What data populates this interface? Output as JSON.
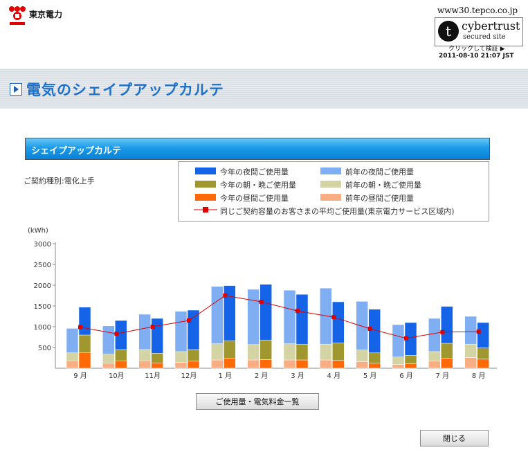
{
  "header": {
    "logo_text": "東京電力",
    "site_url": "www30.tepco.co.jp",
    "cybertrust_name": "cybertrust",
    "cybertrust_sub": "secured site",
    "cybertrust_verify": "クリックして検証 ▶",
    "timestamp": "2011-08-10 21:07 JST"
  },
  "page": {
    "title": "電気のシェイプアップカルテ",
    "section_title": "シェイプアップカルテ",
    "contract_label": "ご契約種別:電化上手"
  },
  "legend": {
    "items": [
      {
        "label": "今年の夜間ご使用量",
        "color": "#1564e8"
      },
      {
        "label": "前年の夜間ご使用量",
        "color": "#80aef2"
      },
      {
        "label": "今年の朝・晩ご使用量",
        "color": "#a0972e"
      },
      {
        "label": "前年の朝・晩ご使用量",
        "color": "#d3d3a4"
      },
      {
        "label": "今年の昼間ご使用量",
        "color": "#ff6a08"
      },
      {
        "label": "前年の昼間ご使用量",
        "color": "#f8ad82"
      }
    ],
    "avg_label": "同じご契約容量のお客さまの平均ご使用量(東京電力サービス区域内)",
    "avg_color": "#dd0000"
  },
  "chart_data": {
    "type": "bar",
    "ylabel": "(kWh)",
    "ylim": [
      0,
      3000
    ],
    "yticks": [
      "3000",
      "2500",
      "2000",
      "1500",
      "1000",
      "500"
    ],
    "categories": [
      "9 月",
      "10月",
      "11月",
      "12月",
      "1 月",
      "2 月",
      "3 月",
      "4 月",
      "5 月",
      "6 月",
      "7 月",
      "8 月"
    ],
    "prev_year": {
      "day": [
        180,
        120,
        180,
        140,
        200,
        200,
        200,
        200,
        160,
        90,
        170,
        260
      ],
      "morning": [
        190,
        220,
        270,
        260,
        390,
        370,
        390,
        380,
        280,
        180,
        230,
        320
      ],
      "night": [
        590,
        680,
        850,
        970,
        1380,
        1330,
        1290,
        1350,
        1170,
        780,
        800,
        670
      ]
    },
    "this_year": {
      "day": [
        380,
        180,
        130,
        170,
        240,
        210,
        200,
        190,
        120,
        110,
        240,
        220
      ],
      "morning": [
        420,
        270,
        230,
        280,
        420,
        470,
        380,
        420,
        250,
        200,
        360,
        270
      ],
      "night": [
        670,
        700,
        840,
        950,
        1330,
        1340,
        1200,
        990,
        1050,
        790,
        890,
        610
      ]
    },
    "average": [
      990,
      830,
      1000,
      1150,
      1750,
      1600,
      1380,
      1230,
      950,
      720,
      870,
      880
    ]
  },
  "buttons": {
    "usage_list": "ご使用量・電気料金一覧",
    "close": "閉じる"
  }
}
